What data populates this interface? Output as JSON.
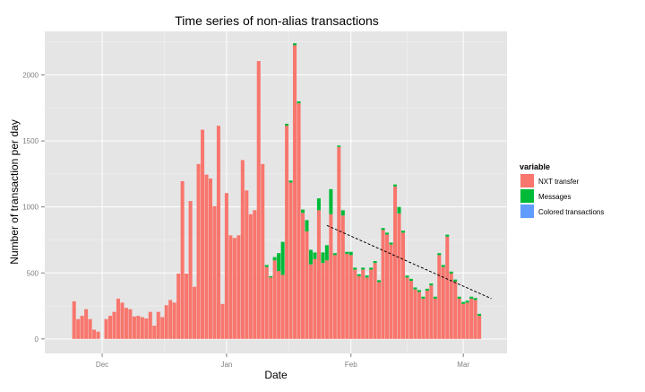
{
  "chart_data": {
    "type": "bar",
    "stacked": true,
    "title": "Time series of non-alias transactions",
    "xlabel": "Date",
    "ylabel": "Number of transaction per day",
    "x_start": "2013-11-24",
    "x_ticks": [
      {
        "label": "Dec",
        "date": "2013-12-01"
      },
      {
        "label": "Jan",
        "date": "2014-01-01"
      },
      {
        "label": "Feb",
        "date": "2014-02-01"
      },
      {
        "label": "Mar",
        "date": "2014-03-01"
      }
    ],
    "y_ticks": [
      0,
      500,
      1000,
      1500,
      2000
    ],
    "ylim": [
      -110,
      2330
    ],
    "grid": true,
    "legend": {
      "title": "variable",
      "position": "right",
      "entries": [
        {
          "label": "NXT transfer",
          "color": "#F8766D"
        },
        {
          "label": "Messages",
          "color": "#00BA38"
        },
        {
          "label": "Colored transactions",
          "color": "#619CFF"
        }
      ]
    },
    "series": [
      {
        "name": "NXT transfer",
        "color": "#F8766D",
        "values": [
          285,
          150,
          175,
          225,
          150,
          70,
          55,
          0,
          150,
          175,
          205,
          305,
          275,
          235,
          225,
          170,
          175,
          165,
          155,
          205,
          100,
          205,
          165,
          255,
          295,
          275,
          495,
          1195,
          495,
          1045,
          395,
          1325,
          1585,
          1245,
          1215,
          1005,
          1615,
          265,
          1105,
          785,
          765,
          785,
          1355,
          1125,
          945,
          975,
          2105,
          1325,
          545,
          465,
          595,
          515,
          485,
          1615,
          1185,
          2225,
          1785,
          955,
          815,
          565,
          605,
          975,
          575,
          595,
          945,
          635,
          1455,
          935,
          645,
          635,
          525,
          475,
          525,
          465,
          525,
          575,
          430,
          825,
          790,
          715,
          1155,
          950,
          805,
          465,
          440,
          375,
          355,
          305,
          365,
          405,
          305,
          635,
          545,
          775,
          495,
          435,
          305,
          265,
          275,
          305,
          295,
          175
        ]
      },
      {
        "name": "Messages",
        "color": "#00BA38",
        "values": [
          0,
          0,
          0,
          0,
          0,
          0,
          0,
          0,
          0,
          0,
          0,
          0,
          0,
          0,
          0,
          0,
          0,
          0,
          0,
          0,
          0,
          0,
          0,
          0,
          0,
          0,
          0,
          0,
          0,
          0,
          0,
          0,
          0,
          0,
          0,
          0,
          0,
          0,
          0,
          0,
          0,
          0,
          0,
          0,
          0,
          0,
          0,
          0,
          15,
          10,
          25,
          135,
          250,
          15,
          15,
          15,
          15,
          25,
          85,
          110,
          50,
          90,
          80,
          115,
          190,
          15,
          10,
          40,
          15,
          25,
          15,
          15,
          15,
          15,
          15,
          15,
          15,
          15,
          15,
          15,
          15,
          50,
          15,
          15,
          15,
          15,
          15,
          15,
          15,
          15,
          15,
          15,
          15,
          15,
          15,
          15,
          15,
          15,
          15,
          15,
          15,
          15
        ]
      },
      {
        "name": "Colored transactions",
        "color": "#619CFF",
        "values": [
          0,
          0,
          0,
          0,
          0,
          0,
          0,
          0,
          0,
          0,
          0,
          0,
          0,
          0,
          0,
          0,
          0,
          0,
          0,
          0,
          0,
          0,
          0,
          0,
          0,
          0,
          0,
          0,
          0,
          0,
          0,
          0,
          0,
          0,
          0,
          0,
          0,
          0,
          0,
          0,
          0,
          0,
          0,
          0,
          0,
          0,
          0,
          0,
          0,
          0,
          0,
          0,
          0,
          0,
          0,
          0,
          0,
          0,
          0,
          0,
          0,
          0,
          0,
          0,
          0,
          0,
          0,
          0,
          0,
          0,
          0,
          0,
          0,
          0,
          0,
          0,
          0,
          0,
          0,
          0,
          0,
          0,
          0,
          0,
          0,
          0,
          0,
          0,
          0,
          0,
          0,
          0,
          0,
          0,
          0,
          0,
          0,
          0,
          0,
          0,
          0,
          0
        ]
      }
    ],
    "trend_line": {
      "style": "dashed",
      "points": [
        [
          "2014-01-26",
          860
        ],
        [
          "2014-03-08",
          305
        ]
      ]
    }
  }
}
